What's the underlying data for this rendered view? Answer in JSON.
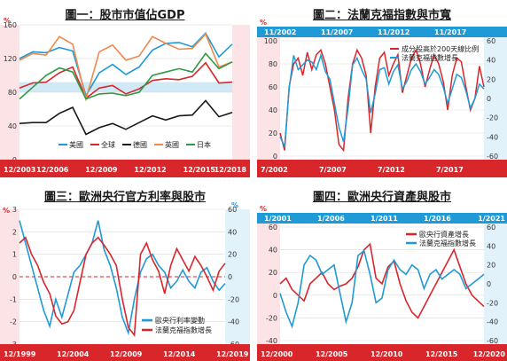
{
  "colors": {
    "red": "#d9262b",
    "blue": "#1f9ad6",
    "black": "#1a1a1a",
    "orange": "#f0894d",
    "green": "#2f9a46",
    "lightred": "#f6b3b8",
    "lightblue": "#a9dbf2",
    "band": "#cfeaf6"
  },
  "chart_data": [
    {
      "type": "line",
      "title": "圖一：股市市值佔GDP",
      "y_unit": "%",
      "ylim": [
        0,
        160
      ],
      "yticks": [
        "160",
        "120",
        "80",
        "40",
        "0"
      ],
      "xticks": [
        "12/2003",
        "12/2006",
        "12/2009",
        "12/2012",
        "12/2015",
        "12/2018"
      ],
      "x": [
        2003,
        2004,
        2005,
        2006,
        2007,
        2008,
        2009,
        2010,
        2011,
        2012,
        2013,
        2014,
        2015,
        2016,
        2017,
        2018,
        2019
      ],
      "highlight_band": [
        80,
        92
      ],
      "series": [
        {
          "name": "美國",
          "color": "#1f9ad6",
          "values": [
            120,
            128,
            127,
            133,
            129,
            76,
            103,
            113,
            101,
            110,
            130,
            138,
            139,
            134,
            150,
            122,
            137
          ]
        },
        {
          "name": "全球",
          "color": "#d9262b",
          "values": [
            85,
            91,
            92,
            103,
            110,
            73,
            85,
            88,
            78,
            84,
            94,
            96,
            95,
            99,
            115,
            91,
            92
          ]
        },
        {
          "name": "德國",
          "color": "#1a1a1a",
          "values": [
            43,
            44,
            44,
            55,
            62,
            30,
            38,
            43,
            36,
            44,
            52,
            47,
            52,
            53,
            70,
            51,
            56
          ]
        },
        {
          "name": "英國",
          "color": "#f0894d",
          "values": [
            118,
            126,
            124,
            146,
            137,
            72,
            128,
            136,
            118,
            123,
            146,
            138,
            131,
            132,
            149,
            110,
            116
          ]
        },
        {
          "name": "日本",
          "color": "#2f9a46",
          "values": [
            72,
            86,
            100,
            109,
            104,
            72,
            78,
            79,
            76,
            80,
            100,
            104,
            108,
            104,
            126,
            108,
            116
          ]
        }
      ]
    },
    {
      "type": "line",
      "title": "圖二：法蘭克福指數與市寬",
      "y_unit": "%",
      "left_ylim": [
        0,
        100
      ],
      "left_yticks": [
        "100",
        "80",
        "60",
        "40",
        "20",
        "0"
      ],
      "right_ylim": [
        -60,
        60
      ],
      "right_yticks": [
        "60",
        "40",
        "20",
        "0",
        "-20",
        "-40",
        "-60"
      ],
      "xticks_top": [
        "11/2002",
        "11/2007",
        "11/2012",
        "11/2017"
      ],
      "xticks_bottom": [
        "7/2002",
        "7/2007",
        "7/2012",
        "7/2017"
      ],
      "series": [
        {
          "name": "成分股高於200天線比例",
          "color": "#d9262b",
          "axis": "left",
          "values": [
            20,
            5,
            60,
            80,
            85,
            70,
            90,
            75,
            88,
            92,
            80,
            60,
            40,
            10,
            5,
            50,
            80,
            92,
            85,
            70,
            20,
            60,
            85,
            90,
            70,
            80,
            88,
            55,
            70,
            85,
            92,
            80,
            60,
            75,
            88,
            80,
            65,
            40,
            70,
            85,
            82,
            60,
            40,
            50,
            78,
            60
          ]
        },
        {
          "name": "法蘭克福指數增長",
          "color": "#1f9ad6",
          "axis": "right",
          "values": [
            -40,
            -50,
            10,
            45,
            30,
            35,
            40,
            38,
            30,
            45,
            28,
            20,
            -5,
            -30,
            -45,
            -10,
            35,
            42,
            30,
            20,
            -15,
            5,
            30,
            32,
            15,
            28,
            35,
            10,
            18,
            30,
            36,
            28,
            15,
            22,
            30,
            25,
            12,
            -5,
            10,
            25,
            22,
            8,
            -10,
            0,
            15,
            10
          ]
        }
      ]
    },
    {
      "type": "line",
      "title": "圖三：歐洲央行官方利率與股市",
      "y_unit": "%",
      "left_ylim": [
        -3,
        3
      ],
      "left_yticks": [
        "3",
        "2",
        "1",
        "0",
        "-1",
        "-2",
        "-3"
      ],
      "right_ylim": [
        -60,
        60
      ],
      "right_yticks": [
        "60",
        "40",
        "20",
        "0",
        "-20",
        "-40",
        "-60"
      ],
      "xticks": [
        "12/1999",
        "12/2004",
        "12/2009",
        "12/2014",
        "12/2019"
      ],
      "series": [
        {
          "name": "歐央行利率變動",
          "color": "#1f9ad6",
          "axis": "left",
          "values": [
            2.5,
            1.5,
            0.5,
            -0.5,
            -1.5,
            -2.2,
            -1.0,
            -1.8,
            -0.8,
            0.2,
            0.5,
            1.0,
            1.5,
            2.5,
            1.2,
            0.5,
            -0.5,
            -1.8,
            -2.5,
            -1.0,
            0.2,
            0.8,
            1.0,
            0.5,
            0.2,
            -0.5,
            -0.2,
            0.3,
            -0.2,
            -0.5,
            0.2,
            0.4,
            -0.2,
            -0.6,
            -0.3
          ]
        },
        {
          "name": "法蘭克福指數增長",
          "color": "#d9262b",
          "axis": "right",
          "values": [
            30,
            35,
            20,
            10,
            -5,
            -15,
            -35,
            -42,
            -40,
            -30,
            -5,
            20,
            30,
            35,
            28,
            20,
            10,
            -20,
            -45,
            -52,
            20,
            30,
            15,
            5,
            -15,
            10,
            25,
            15,
            5,
            18,
            10,
            0,
            -12,
            5,
            12
          ]
        }
      ]
    },
    {
      "type": "line",
      "title": "圖四：歐洲央行資產與股市",
      "y_unit": "%",
      "left_ylim": [
        -40,
        60
      ],
      "left_yticks": [
        "60",
        "40",
        "20",
        "0",
        "-20",
        "-40"
      ],
      "right_ylim": [
        -60,
        60
      ],
      "right_yticks": [
        "60",
        "40",
        "20",
        "0",
        "-20",
        "-40",
        "-60"
      ],
      "xticks_top": [
        "1/2001",
        "1/2006",
        "1/2011",
        "1/2016",
        "1/2021"
      ],
      "xticks_bottom": [
        "12/2000",
        "12/2005",
        "12/2010",
        "12/2015",
        "12/2020"
      ],
      "series": [
        {
          "name": "歐央行資產增長",
          "color": "#d9262b",
          "axis": "left",
          "values": [
            10,
            15,
            5,
            0,
            -5,
            10,
            15,
            20,
            10,
            5,
            8,
            10,
            15,
            25,
            40,
            45,
            15,
            10,
            25,
            30,
            10,
            -5,
            -15,
            -20,
            -10,
            0,
            10,
            20,
            30,
            40,
            25,
            10,
            0,
            -5,
            -10
          ]
        },
        {
          "name": "法蘭克福指數增長",
          "color": "#1f9ad6",
          "axis": "right",
          "values": [
            -10,
            -30,
            -45,
            -20,
            20,
            30,
            25,
            10,
            15,
            20,
            -10,
            -40,
            -20,
            30,
            35,
            10,
            -20,
            -15,
            15,
            25,
            15,
            10,
            20,
            15,
            -5,
            10,
            15,
            5,
            10,
            15,
            10,
            -5,
            0,
            5,
            10
          ]
        }
      ]
    }
  ]
}
